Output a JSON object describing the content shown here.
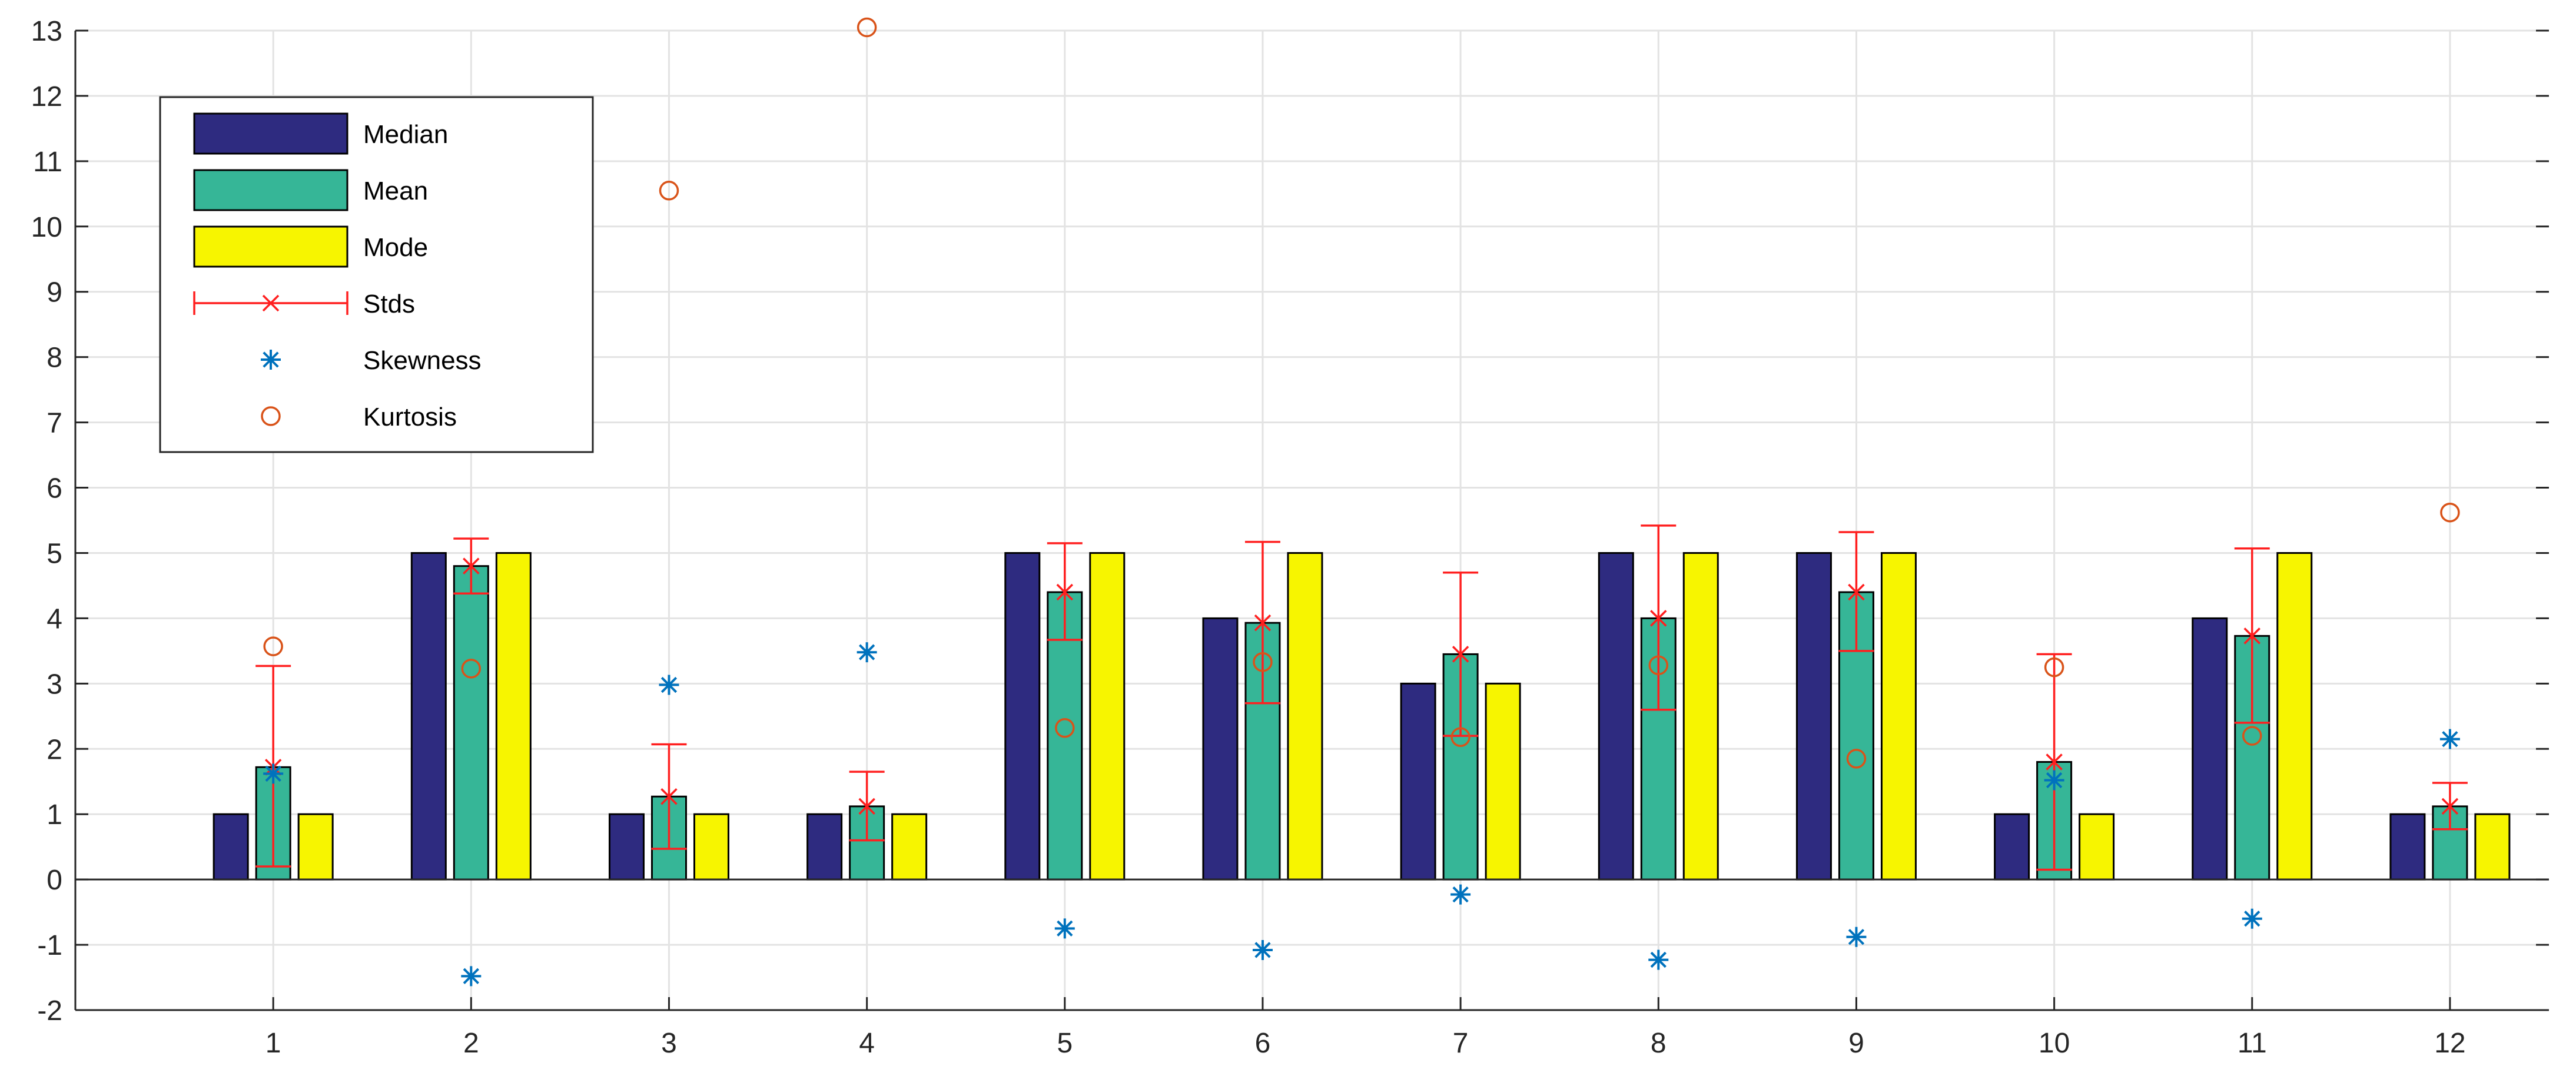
{
  "chart_data": {
    "type": "bar",
    "title": "",
    "xlabel": "",
    "ylabel": "",
    "categories": [
      "1",
      "2",
      "3",
      "4",
      "5",
      "6",
      "7",
      "8",
      "9",
      "10",
      "11",
      "12"
    ],
    "ylim": [
      -2,
      13
    ],
    "yticks": [
      -2,
      -1,
      0,
      1,
      2,
      3,
      4,
      5,
      6,
      7,
      8,
      9,
      10,
      11,
      12,
      13
    ],
    "grid": true,
    "legend_position": "top-left",
    "series": [
      {
        "name": "Median",
        "kind": "bar",
        "color": "#2e2b80",
        "values": [
          1,
          5,
          1,
          1,
          5,
          4,
          3,
          5,
          5,
          1,
          4,
          1
        ]
      },
      {
        "name": "Mean",
        "kind": "bar",
        "color": "#36b697",
        "values": [
          1.72,
          4.8,
          1.27,
          1.12,
          4.4,
          3.93,
          3.45,
          4.0,
          4.4,
          1.8,
          3.73,
          1.12
        ]
      },
      {
        "name": "Mode",
        "kind": "bar",
        "color": "#f7f500",
        "values": [
          1,
          5,
          1,
          1,
          5,
          5,
          3,
          5,
          5,
          1,
          5,
          1
        ]
      },
      {
        "name": "Stds",
        "kind": "errorbar",
        "color": "#ff1f1f",
        "center": [
          1.72,
          4.8,
          1.27,
          1.12,
          4.4,
          3.93,
          3.45,
          4.0,
          4.4,
          1.8,
          3.73,
          1.12
        ],
        "lower": [
          0.2,
          4.38,
          0.47,
          0.6,
          3.67,
          2.7,
          2.2,
          2.6,
          3.5,
          0.15,
          2.4,
          0.77
        ],
        "upper": [
          3.27,
          5.22,
          2.07,
          1.65,
          5.15,
          5.17,
          4.7,
          5.42,
          5.32,
          3.45,
          5.07,
          1.48
        ]
      },
      {
        "name": "Skewness",
        "kind": "marker",
        "marker": "asterisk",
        "color": "#0072bd",
        "values": [
          1.62,
          -1.48,
          2.98,
          3.48,
          -0.75,
          -1.08,
          -0.23,
          -1.23,
          -0.88,
          1.52,
          -0.6,
          2.15
        ]
      },
      {
        "name": "Kurtosis",
        "kind": "marker",
        "marker": "circle",
        "color": "#d95319",
        "values": [
          3.57,
          3.23,
          10.55,
          13.05,
          2.32,
          3.33,
          2.18,
          3.28,
          1.85,
          3.25,
          2.2,
          5.62
        ]
      }
    ]
  }
}
